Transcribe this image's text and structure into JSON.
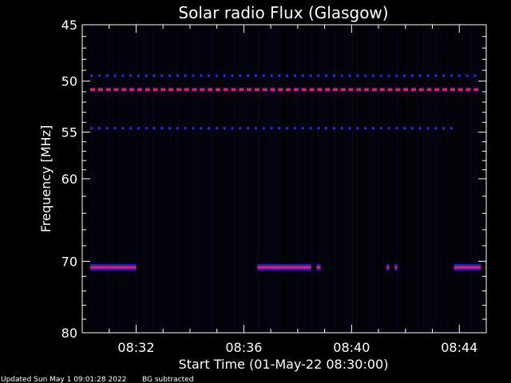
{
  "colors": {
    "background": "#000000",
    "axes": "#ffffff",
    "noise_stripe": "#07072a",
    "band_outer": "#1a1aff",
    "band_core": "#ff2020",
    "dot": "#2a2aff"
  },
  "footer": {
    "updated": "Updated Sun May  1 09:01:28 2022",
    "note": "BG subtracted"
  },
  "chart_data": {
    "type": "heatmap",
    "title": "Solar radio Flux (Glasgow)",
    "xlabel": "Start Time (01-May-22 08:30:00)",
    "ylabel": "Frequency [MHz]",
    "x_unit": "minutes after 08:30:00",
    "xlim": [
      0,
      15
    ],
    "x_ticks": [
      {
        "value": 2,
        "label": "08:32"
      },
      {
        "value": 6,
        "label": "08:36"
      },
      {
        "value": 10,
        "label": "08:40"
      },
      {
        "value": 14,
        "label": "08:44"
      }
    ],
    "y_scale": "log",
    "ylim": [
      80,
      45
    ],
    "y_ticks": [
      {
        "value": 45,
        "label": "45"
      },
      {
        "value": 50,
        "label": "50"
      },
      {
        "value": 55,
        "label": "55"
      },
      {
        "value": 60,
        "label": "60"
      },
      {
        "value": 70,
        "label": "70"
      },
      {
        "value": 80,
        "label": "80"
      }
    ],
    "y_minor_ticks": [
      46,
      47,
      48,
      49,
      51,
      52,
      53,
      54,
      56,
      57,
      58,
      59,
      62,
      64,
      66,
      68,
      72,
      74,
      76,
      78
    ],
    "data_start": 0.3,
    "data_end": 14.8,
    "bands": [
      {
        "freq": 50.8,
        "style": "dashed",
        "color": "band_core",
        "intensity": "strong",
        "segments": [
          [
            0.3,
            14.8
          ]
        ]
      },
      {
        "freq": 49.5,
        "style": "dotted",
        "color": "dot",
        "intensity": "weak",
        "segments": [
          [
            0.3,
            14.8
          ]
        ]
      },
      {
        "freq": 54.6,
        "style": "dotted",
        "color": "dot",
        "intensity": "weak",
        "segments": [
          [
            0.3,
            14.0
          ]
        ]
      },
      {
        "freq": 70.8,
        "style": "solid",
        "color": "band_core",
        "intensity": "strong",
        "segments": [
          [
            0.3,
            2.0
          ],
          [
            6.5,
            8.5
          ],
          [
            8.7,
            8.85
          ],
          [
            11.3,
            11.4
          ],
          [
            11.6,
            11.7
          ],
          [
            13.8,
            14.8
          ]
        ]
      }
    ]
  }
}
